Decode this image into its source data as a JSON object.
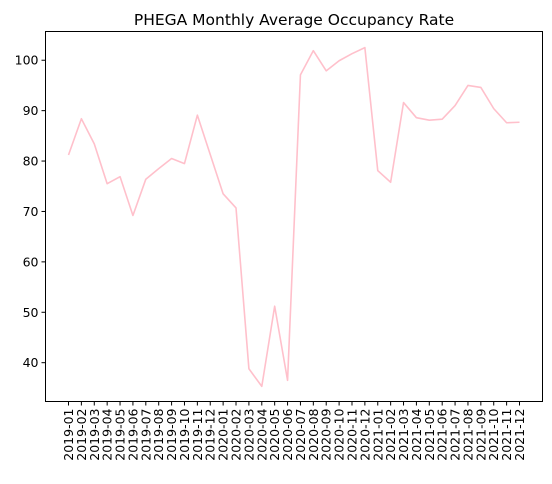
{
  "chart_data": {
    "type": "line",
    "title": "PHEGA Monthly Average Occupancy Rate",
    "xlabel": "",
    "ylabel": "",
    "categories": [
      "2019-01",
      "2019-02",
      "2019-03",
      "2019-04",
      "2019-05",
      "2019-06",
      "2019-07",
      "2019-08",
      "2019-09",
      "2019-10",
      "2019-11",
      "2019-12",
      "2020-01",
      "2020-02",
      "2020-03",
      "2020-04",
      "2020-05",
      "2020-06",
      "2020-07",
      "2020-08",
      "2020-09",
      "2020-10",
      "2020-11",
      "2020-12",
      "2021-01",
      "2021-02",
      "2021-03",
      "2021-04",
      "2021-05",
      "2021-06",
      "2021-07",
      "2021-08",
      "2021-09",
      "2021-10",
      "2021-11",
      "2021-12"
    ],
    "series": [
      {
        "color": "#ffc0cb",
        "values": [
          81.2,
          88.4,
          83.4,
          75.5,
          76.9,
          69.2,
          76.4,
          78.5,
          80.5,
          79.5,
          89.1,
          81.3,
          73.5,
          70.7,
          38.8,
          35.3,
          51.2,
          36.5,
          97.1,
          101.9,
          97.9,
          99.9,
          101.3,
          102.5,
          78.1,
          75.8,
          91.6,
          88.6,
          88.1,
          88.3,
          91.0,
          95.0,
          94.6,
          90.4,
          87.6,
          87.7
        ]
      }
    ],
    "ylim": [
      32.3,
      105.7
    ],
    "yticks": [
      40,
      50,
      60,
      70,
      80,
      90,
      100
    ],
    "grid": false,
    "legend": "none"
  }
}
